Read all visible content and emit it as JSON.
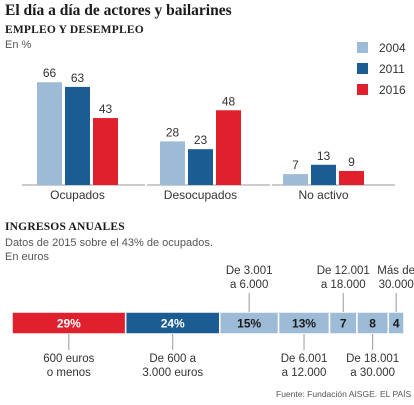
{
  "page": {
    "title": "El día a día de actores y bailarines",
    "source": "Fuente: Fundación AISGE.",
    "publisher": "EL PAÍS"
  },
  "colors": {
    "c2004": "#9dbbd6",
    "c2011": "#1b5d92",
    "c2016": "#e0212d",
    "axis": "#999999",
    "text": "#333333"
  },
  "employment": {
    "heading": "EMPLEO Y DESEMPLEO",
    "unit": "En %"
  },
  "income": {
    "heading": "INGRESOS ANUALES",
    "note_line1": "Datos de 2015 sobre el 43% de ocupados.",
    "note_line2": "En euros"
  },
  "chart_data": [
    {
      "type": "bar",
      "title": "EMPLEO Y DESEMPLEO",
      "ylabel": "En %",
      "categories": [
        "Ocupados",
        "Desocupados",
        "No activo"
      ],
      "series": [
        {
          "name": "2004",
          "color": "#9dbbd6",
          "values": [
            66,
            28,
            7
          ]
        },
        {
          "name": "2011",
          "color": "#1b5d92",
          "values": [
            63,
            23,
            13
          ]
        },
        {
          "name": "2016",
          "color": "#e0212d",
          "values": [
            43,
            48,
            9
          ]
        }
      ],
      "ylim": [
        0,
        70
      ],
      "grid": false,
      "legend": "top-right"
    },
    {
      "type": "bar",
      "subtype": "stacked-100",
      "title": "INGRESOS ANUALES",
      "segments": [
        {
          "label": "29%",
          "value": 29,
          "range": [
            "600 euros",
            "o menos"
          ],
          "color": "#e0212d",
          "range_position": "below"
        },
        {
          "label": "24%",
          "value": 24,
          "range": [
            "De 600 a",
            "3.000 euros"
          ],
          "color": "#1b5d92",
          "range_position": "below"
        },
        {
          "label": "15%",
          "value": 15,
          "range": [
            "De 3.001",
            "a 6.000"
          ],
          "color": "#9dbbd6",
          "range_position": "above"
        },
        {
          "label": "13%",
          "value": 13,
          "range": [
            "De 6.001",
            "a 12.000"
          ],
          "color": "#9dbbd6",
          "range_position": "below"
        },
        {
          "label": "7",
          "value": 7,
          "range": [
            "De 12.001",
            "a 18.000"
          ],
          "color": "#9dbbd6",
          "range_position": "above"
        },
        {
          "label": "8",
          "value": 8,
          "range": [
            "De 18.001",
            "a 30.000"
          ],
          "color": "#9dbbd6",
          "range_position": "below"
        },
        {
          "label": "4",
          "value": 4,
          "range": [
            "Más de",
            "30.000"
          ],
          "color": "#9dbbd6",
          "range_position": "above"
        }
      ]
    }
  ]
}
